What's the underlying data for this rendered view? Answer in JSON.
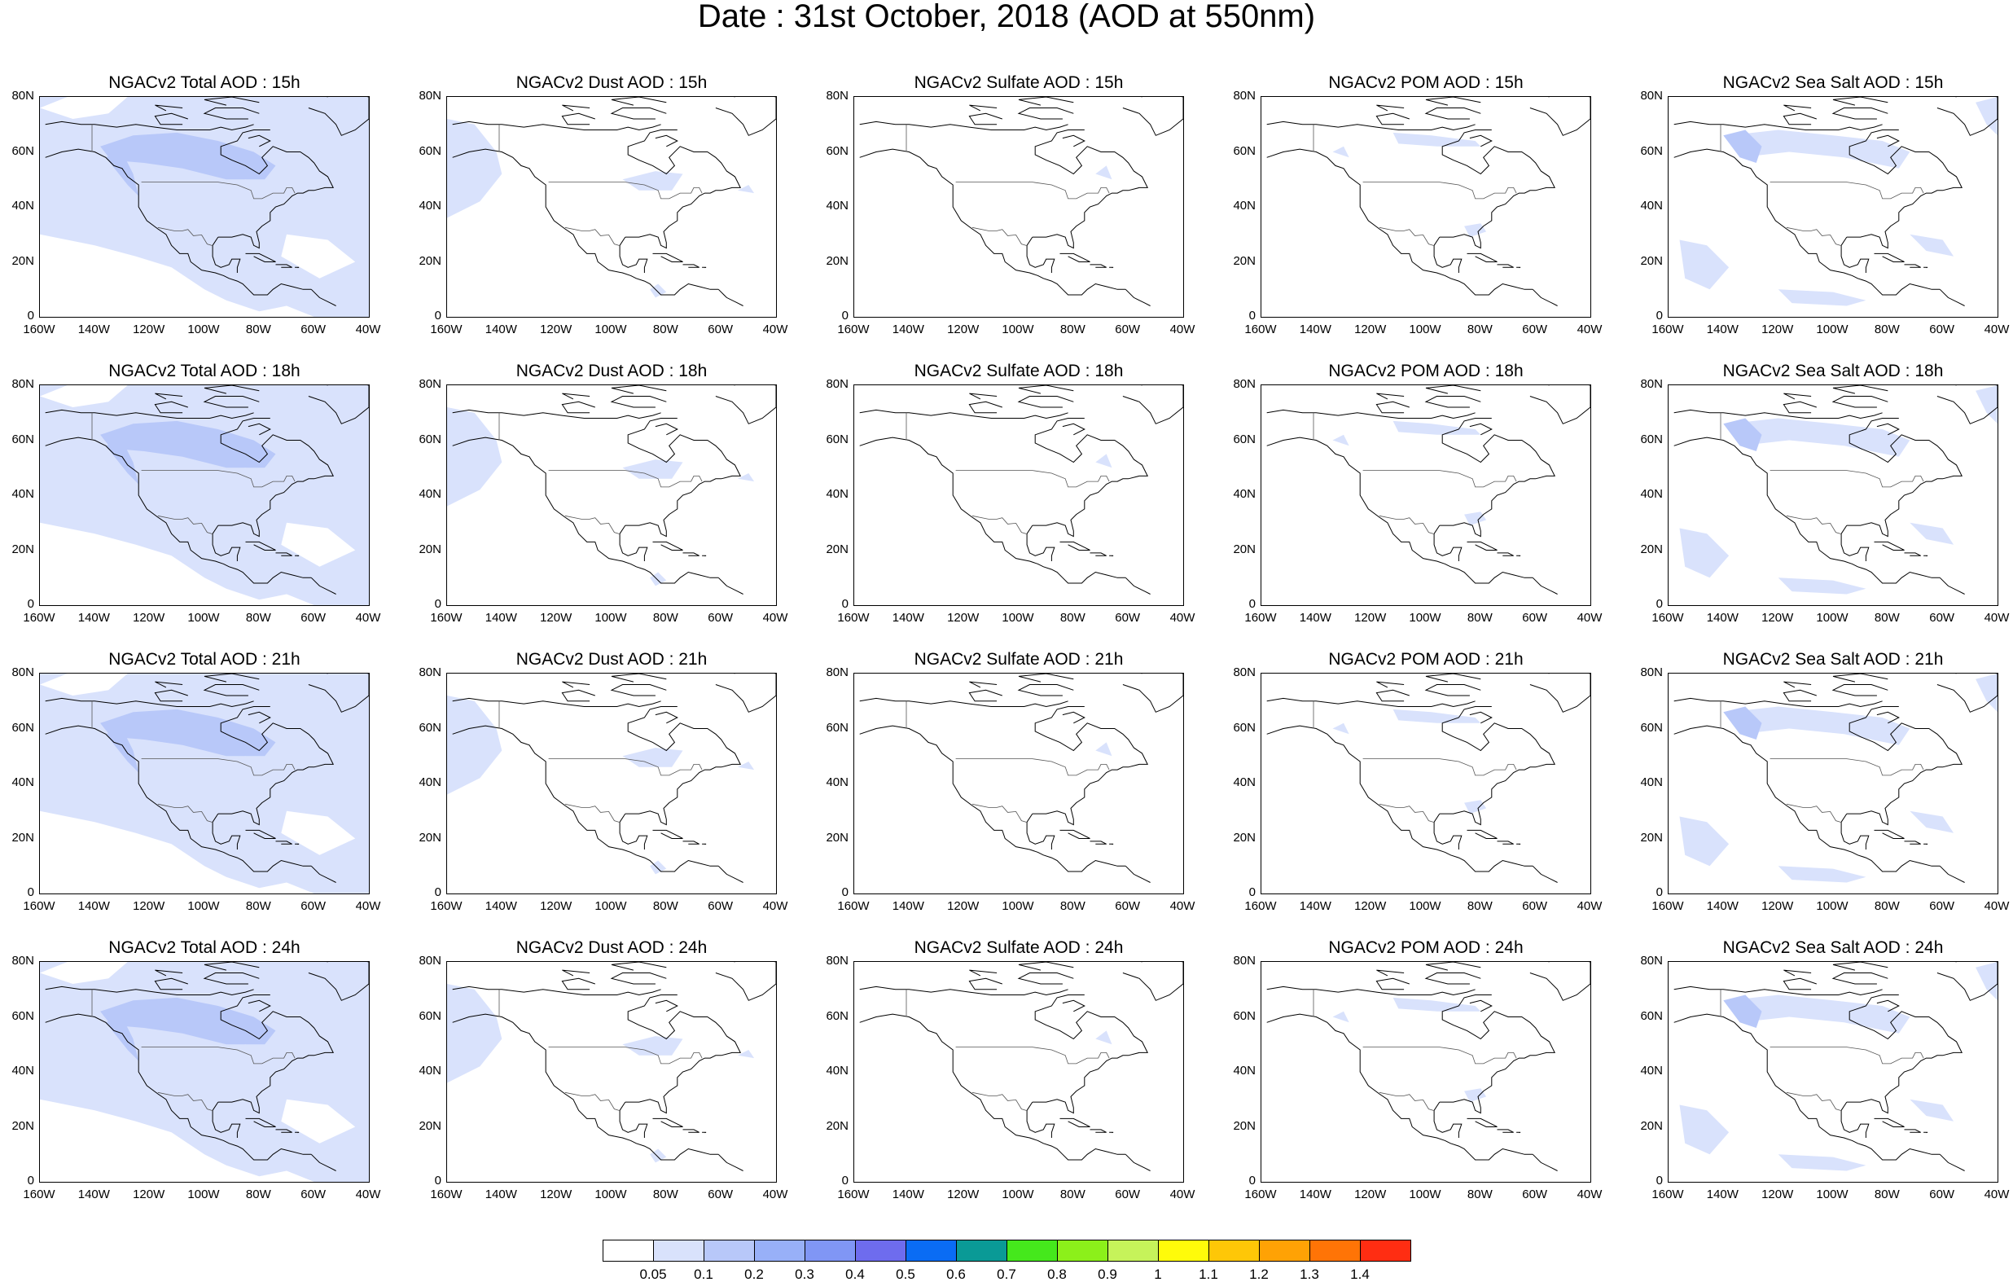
{
  "title": "Date : 31st October, 2018 (AOD at 550nm)",
  "panels": [
    {
      "title": "NGACv2 Total AOD : 15h",
      "field": "total"
    },
    {
      "title": "NGACv2 Dust AOD : 15h",
      "field": "dust"
    },
    {
      "title": "NGACv2 Sulfate AOD : 15h",
      "field": "sulfate"
    },
    {
      "title": "NGACv2 POM AOD : 15h",
      "field": "pom"
    },
    {
      "title": "NGACv2 Sea Salt AOD : 15h",
      "field": "seasalt"
    },
    {
      "title": "NGACv2 Total AOD : 18h",
      "field": "total"
    },
    {
      "title": "NGACv2 Dust AOD : 18h",
      "field": "dust"
    },
    {
      "title": "NGACv2 Sulfate AOD : 18h",
      "field": "sulfate"
    },
    {
      "title": "NGACv2 POM AOD : 18h",
      "field": "pom"
    },
    {
      "title": "NGACv2 Sea Salt AOD : 18h",
      "field": "seasalt"
    },
    {
      "title": "NGACv2 Total AOD : 21h",
      "field": "total"
    },
    {
      "title": "NGACv2 Dust AOD : 21h",
      "field": "dust"
    },
    {
      "title": "NGACv2 Sulfate AOD : 21h",
      "field": "sulfate"
    },
    {
      "title": "NGACv2 POM AOD : 21h",
      "field": "pom"
    },
    {
      "title": "NGACv2 Sea Salt AOD : 21h",
      "field": "seasalt"
    },
    {
      "title": "NGACv2 Total AOD : 24h",
      "field": "total"
    },
    {
      "title": "NGACv2 Dust AOD : 24h",
      "field": "dust"
    },
    {
      "title": "NGACv2 Sulfate AOD : 24h",
      "field": "sulfate"
    },
    {
      "title": "NGACv2 POM AOD : 24h",
      "field": "pom"
    },
    {
      "title": "NGACv2 Sea Salt  AOD : 24h",
      "field": "seasalt"
    }
  ],
  "y_ticks": [
    "80N",
    "60N",
    "40N",
    "20N",
    "0"
  ],
  "x_ticks": [
    "160W",
    "140W",
    "120W",
    "100W",
    "80W",
    "60W",
    "40W"
  ],
  "map_extent": {
    "lon": [
      -160,
      -40
    ],
    "lat": [
      0,
      80
    ]
  },
  "colorbar": {
    "labels": [
      "0.05",
      "0.1",
      "0.2",
      "0.3",
      "0.4",
      "0.5",
      "0.6",
      "0.7",
      "0.8",
      "0.9",
      "1",
      "1.1",
      "1.2",
      "1.3",
      "1.4"
    ],
    "colors": [
      "#ffffff",
      "#d9e2fc",
      "#b8c8f9",
      "#98b0f8",
      "#8096f5",
      "#6e6cee",
      "#0a6cf4",
      "#0a9a96",
      "#45e81c",
      "#8cf01a",
      "#c6f35a",
      "#fffb0a",
      "#fec707",
      "#ffa205",
      "#ff7406",
      "#ff2d12"
    ]
  }
}
